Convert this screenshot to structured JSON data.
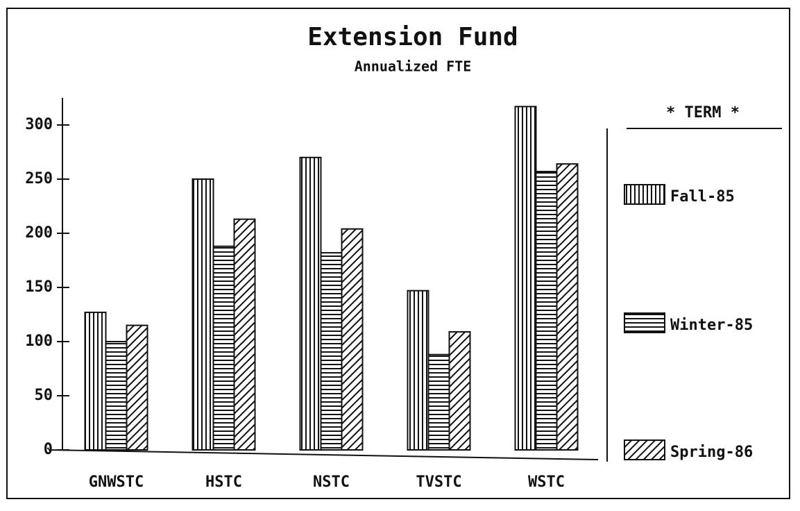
{
  "chart_data": {
    "type": "bar",
    "title": "Extension Fund",
    "subtitle": "Annualized FTE",
    "categories": [
      "GNWSTC",
      "HSTC",
      "NSTC",
      "TVSTC",
      "WSTC"
    ],
    "series": [
      {
        "name": "Fall-85",
        "color": "#111111",
        "hatch": "vertical",
        "values": [
          127,
          250,
          270,
          147,
          317
        ]
      },
      {
        "name": "Winter-85",
        "color": "#111111",
        "hatch": "horizontal",
        "values": [
          100,
          188,
          182,
          88,
          257
        ]
      },
      {
        "name": "Spring-86",
        "color": "#111111",
        "hatch": "diagonal",
        "values": [
          115,
          213,
          204,
          109,
          264
        ]
      }
    ],
    "ylim": [
      0,
      325
    ],
    "yticks": [
      0,
      50,
      100,
      150,
      200,
      250,
      300
    ],
    "legend_title": "* TERM *",
    "legend": "right"
  }
}
